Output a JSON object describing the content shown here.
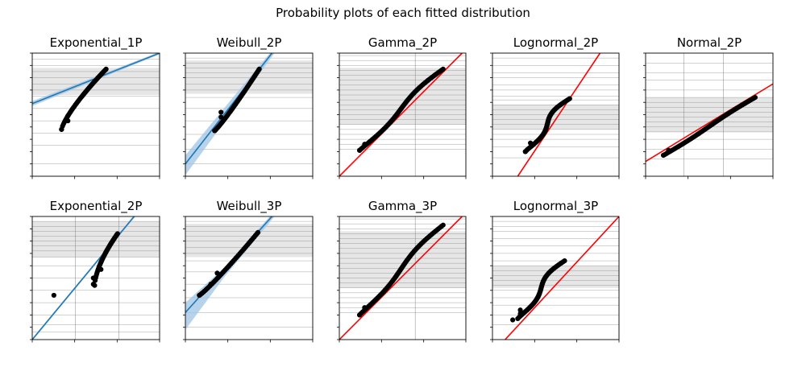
{
  "title": "Probability plots of each fitted distribution",
  "colors": {
    "fit_blue": "#1f77b4",
    "band_blue": "#9fc4e4",
    "fit_red": "#ff0000",
    "points": "#000000",
    "grid_band": "#e6e6e6",
    "grid_line": "#7f7f7f",
    "axis": "#000000"
  },
  "chart_data": [
    {
      "type": "scatter",
      "title": "Exponential_1P",
      "fit_color": "blue",
      "confidence_band": true,
      "tick_labels_visible": false
    },
    {
      "type": "scatter",
      "title": "Weibull_2P",
      "fit_color": "blue",
      "confidence_band": true,
      "tick_labels_visible": false
    },
    {
      "type": "scatter",
      "title": "Gamma_2P",
      "fit_color": "red",
      "confidence_band": false,
      "tick_labels_visible": false
    },
    {
      "type": "scatter",
      "title": "Lognormal_2P",
      "fit_color": "red",
      "confidence_band": false,
      "tick_labels_visible": false
    },
    {
      "type": "scatter",
      "title": "Normal_2P",
      "fit_color": "red",
      "confidence_band": false,
      "tick_labels_visible": false
    },
    {
      "type": "scatter",
      "title": "Exponential_2P",
      "fit_color": "blue",
      "confidence_band": true,
      "tick_labels_visible": false
    },
    {
      "type": "scatter",
      "title": "Weibull_3P",
      "fit_color": "blue",
      "confidence_band": true,
      "tick_labels_visible": false
    },
    {
      "type": "scatter",
      "title": "Gamma_3P",
      "fit_color": "red",
      "confidence_band": false,
      "tick_labels_visible": false
    },
    {
      "type": "scatter",
      "title": "Lognormal_3P",
      "fit_color": "red",
      "confidence_band": false,
      "tick_labels_visible": false
    }
  ]
}
